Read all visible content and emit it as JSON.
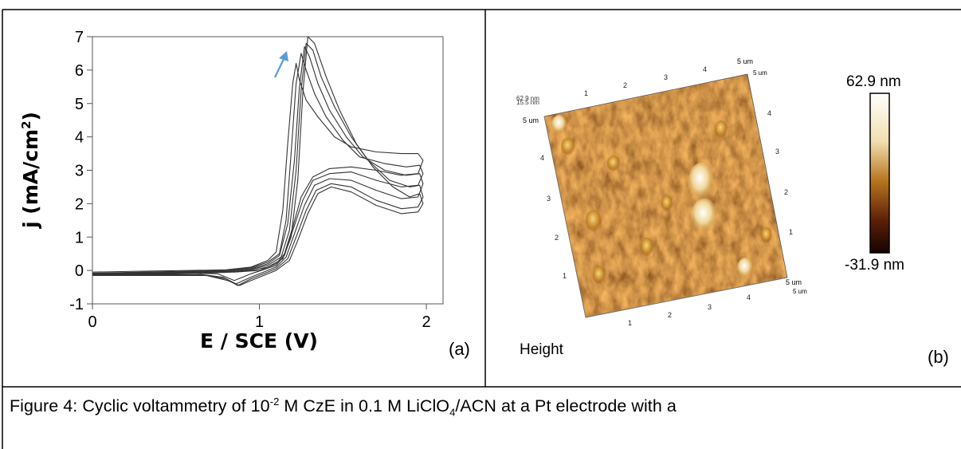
{
  "chart_data": {
    "type": "line",
    "title": "",
    "panel_label": "(a)",
    "xlabel": "E / SCE (V)",
    "ylabel": "j (mA/cm",
    "ylabel_sup": "2",
    "ylabel_end": ")",
    "xlim": [
      0,
      2.1
    ],
    "ylim": [
      -1,
      7
    ],
    "x_ticks": [
      0,
      1,
      2
    ],
    "x_tick_labels": [
      "0",
      "1",
      "2"
    ],
    "y_ticks": [
      -1,
      0,
      1,
      2,
      3,
      4,
      5,
      6,
      7
    ],
    "y_tick_labels": [
      "-1",
      "0",
      "1",
      "2",
      "3",
      "4",
      "5",
      "6",
      "7"
    ],
    "grid": false,
    "series": [
      {
        "x": [
          0.0,
          0.3,
          0.6,
          0.8,
          0.95,
          1.05,
          1.1,
          1.14,
          1.17,
          1.2,
          1.22,
          1.24,
          1.28,
          1.35,
          1.45,
          1.55,
          1.7,
          1.85,
          1.95,
          1.98,
          1.95,
          1.85,
          1.7,
          1.55,
          1.42,
          1.32,
          1.25,
          1.2,
          1.15,
          1.1,
          1.0,
          0.85,
          0.7,
          0.5,
          0.2,
          0.0
        ],
        "y": [
          -0.05,
          -0.02,
          0.0,
          0.02,
          0.1,
          0.3,
          0.55,
          1.8,
          3.8,
          5.6,
          6.2,
          5.7,
          5.1,
          4.6,
          4.0,
          3.7,
          3.55,
          3.5,
          3.5,
          3.3,
          2.9,
          2.85,
          3.0,
          3.1,
          3.05,
          2.8,
          2.2,
          1.3,
          0.5,
          0.2,
          0.0,
          -0.05,
          -0.05,
          -0.07,
          -0.08,
          -0.08
        ]
      },
      {
        "x": [
          0.0,
          0.3,
          0.6,
          0.8,
          0.95,
          1.05,
          1.12,
          1.16,
          1.19,
          1.22,
          1.25,
          1.28,
          1.33,
          1.4,
          1.5,
          1.6,
          1.75,
          1.88,
          1.96,
          1.98,
          1.95,
          1.85,
          1.7,
          1.55,
          1.42,
          1.32,
          1.26,
          1.2,
          1.15,
          1.1,
          0.95,
          0.85,
          0.75,
          0.6,
          0.3,
          0.0
        ],
        "y": [
          -0.08,
          -0.05,
          -0.02,
          0.0,
          0.08,
          0.25,
          0.5,
          1.5,
          3.5,
          5.6,
          6.5,
          6.0,
          5.3,
          4.6,
          3.9,
          3.4,
          3.2,
          3.1,
          3.15,
          2.9,
          2.55,
          2.5,
          2.7,
          2.95,
          2.9,
          2.7,
          2.1,
          1.2,
          0.45,
          0.15,
          -0.1,
          -0.3,
          -0.1,
          -0.08,
          -0.1,
          -0.1
        ]
      },
      {
        "x": [
          0.0,
          0.3,
          0.6,
          0.8,
          0.95,
          1.05,
          1.12,
          1.17,
          1.21,
          1.24,
          1.27,
          1.3,
          1.35,
          1.42,
          1.52,
          1.62,
          1.75,
          1.88,
          1.96,
          1.98,
          1.95,
          1.85,
          1.7,
          1.55,
          1.42,
          1.33,
          1.27,
          1.21,
          1.16,
          1.1,
          0.95,
          0.86,
          0.78,
          0.65,
          0.3,
          0.0
        ],
        "y": [
          -0.1,
          -0.07,
          -0.04,
          -0.02,
          0.05,
          0.2,
          0.45,
          1.4,
          3.3,
          5.5,
          6.7,
          6.4,
          5.6,
          4.8,
          4.0,
          3.4,
          3.0,
          2.85,
          2.9,
          2.6,
          2.2,
          2.15,
          2.4,
          2.7,
          2.75,
          2.55,
          1.95,
          1.1,
          0.4,
          0.1,
          -0.2,
          -0.4,
          -0.2,
          -0.12,
          -0.12,
          -0.12
        ]
      },
      {
        "x": [
          0.0,
          0.3,
          0.6,
          0.8,
          0.95,
          1.05,
          1.13,
          1.18,
          1.22,
          1.25,
          1.28,
          1.32,
          1.37,
          1.45,
          1.55,
          1.65,
          1.78,
          1.9,
          1.96,
          1.98,
          1.95,
          1.85,
          1.7,
          1.55,
          1.43,
          1.34,
          1.28,
          1.22,
          1.17,
          1.1,
          0.95,
          0.87,
          0.8,
          0.67,
          0.3,
          0.0
        ],
        "y": [
          -0.12,
          -0.09,
          -0.06,
          -0.04,
          0.03,
          0.15,
          0.4,
          1.2,
          3.0,
          5.4,
          6.8,
          6.6,
          5.8,
          4.9,
          4.0,
          3.3,
          2.7,
          2.5,
          2.55,
          2.2,
          1.9,
          1.85,
          2.1,
          2.5,
          2.6,
          2.4,
          1.8,
          1.0,
          0.35,
          0.05,
          -0.25,
          -0.45,
          -0.25,
          -0.14,
          -0.14,
          -0.14
        ]
      },
      {
        "x": [
          0.0,
          0.3,
          0.6,
          0.8,
          0.95,
          1.05,
          1.14,
          1.19,
          1.23,
          1.26,
          1.29,
          1.33,
          1.4,
          1.48,
          1.58,
          1.68,
          1.8,
          1.9,
          1.96,
          1.98,
          1.95,
          1.85,
          1.7,
          1.55,
          1.43,
          1.35,
          1.29,
          1.23,
          1.18,
          1.1,
          0.95,
          0.88,
          0.81,
          0.68,
          0.3,
          0.0
        ],
        "y": [
          -0.14,
          -0.11,
          -0.08,
          -0.06,
          0.0,
          0.1,
          0.35,
          1.0,
          2.7,
          5.3,
          7.0,
          6.8,
          5.8,
          4.8,
          3.8,
          3.1,
          2.5,
          2.2,
          2.3,
          2.0,
          1.75,
          1.7,
          1.95,
          2.35,
          2.5,
          2.3,
          1.7,
          0.9,
          0.3,
          0.0,
          -0.3,
          -0.45,
          -0.3,
          -0.15,
          -0.15,
          -0.15
        ]
      }
    ]
  },
  "afm": {
    "panel_label": "(b)",
    "label": "Height",
    "scale_max": "62.9 nm",
    "scale_min": "-31.9 nm",
    "corner_text_1": "62.9 nm",
    "corner_text_2": "15.5 nm",
    "axis_unit": "5 um",
    "ticks": [
      "1",
      "2",
      "3",
      "4"
    ]
  },
  "caption": {
    "lead": "Figure 4: Cyclic voltammetry of 10",
    "sup": "-2",
    "mid": " M CzE in 0.1 M LiClO",
    "sub": "4",
    "tail": "/ACN at a Pt electrode with a"
  },
  "colors": {
    "border": "#000000",
    "arrow": "#5b9bd5",
    "curve": "#333333",
    "afm_dark": "#3a0e05",
    "afm_mid": "#8a4a12",
    "afm_light": "#d9a540"
  }
}
